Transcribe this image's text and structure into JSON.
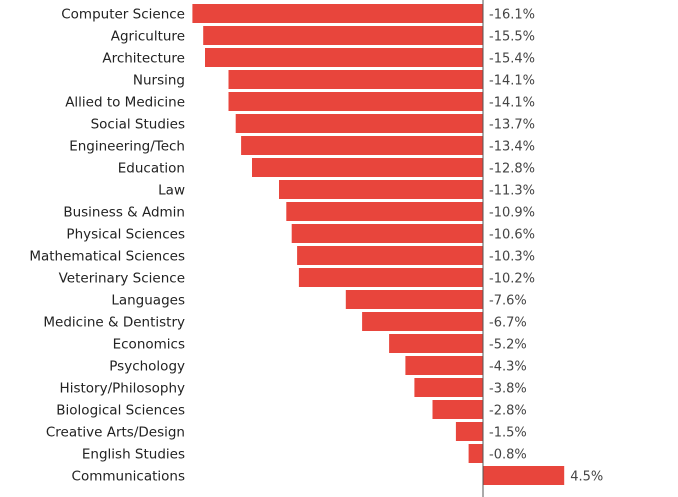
{
  "chart_data": {
    "type": "bar",
    "orientation": "horizontal",
    "title": "",
    "xlabel": "",
    "ylabel": "",
    "unit": "%",
    "xlim": [
      -17.5,
      6.0
    ],
    "grid": false,
    "bar_color": "#e8453c",
    "axis_color": "#555555",
    "categories": [
      "Computer Science",
      "Agriculture",
      "Architecture",
      "Nursing",
      "Allied to Medicine",
      "Social Studies",
      "Engineering/Tech",
      "Education",
      "Law",
      "Business & Admin",
      "Physical Sciences",
      "Mathematical Sciences",
      "Veterinary Science",
      "Languages",
      "Medicine & Dentistry",
      "Economics",
      "Psychology",
      "History/Philosophy",
      "Biological Sciences",
      "Creative Arts/Design",
      "English Studies",
      "Communications"
    ],
    "values": [
      -16.1,
      -15.5,
      -15.4,
      -14.1,
      -14.1,
      -13.7,
      -13.4,
      -12.8,
      -11.3,
      -10.9,
      -10.6,
      -10.3,
      -10.2,
      -7.6,
      -6.7,
      -5.2,
      -4.3,
      -3.8,
      -2.8,
      -1.5,
      -0.8,
      4.5
    ],
    "value_labels": [
      "-16.1%",
      "-15.5%",
      "-15.4%",
      "-14.1%",
      "-14.1%",
      "-13.7%",
      "-13.4%",
      "-12.8%",
      "-11.3%",
      "-10.9%",
      "-10.6%",
      "-10.3%",
      "-10.2%",
      "-7.6%",
      "-6.7%",
      "-5.2%",
      "-4.3%",
      "-3.8%",
      "-2.8%",
      "-1.5%",
      "-0.8%",
      "4.5%"
    ]
  }
}
